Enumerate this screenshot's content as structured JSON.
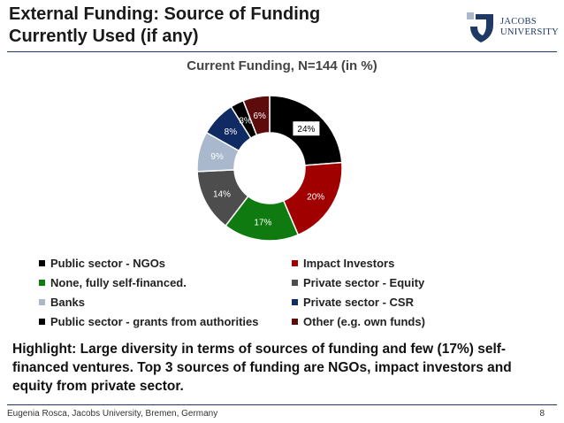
{
  "header": {
    "title": "External Funding: Source of Funding\nCurrently Used (if any)",
    "logo": {
      "line1": "JACOBS",
      "line2": "UNIVERSITY"
    }
  },
  "colors": {
    "navy": "#1f3864",
    "text": "#1a1a1a"
  },
  "chart_data": {
    "type": "pie",
    "style": "donut",
    "title": "Current Funding, N=144 (in %)",
    "categories": [
      "Public sector - NGOs",
      "Impact Investors",
      "None, fully self-financed.",
      "Private sector - Equity",
      "Banks",
      "Private sector - CSR",
      "Public sector - grants from authorities",
      "Other (e.g. own funds)"
    ],
    "values": [
      24,
      20,
      17,
      14,
      9,
      8,
      3,
      6
    ],
    "labels": [
      "24%",
      "20%",
      "17%",
      "14%",
      "9%",
      "8%",
      "3%",
      "6%"
    ],
    "colors": [
      "#000000",
      "#a00000",
      "#0f7a0f",
      "#4d4d4d",
      "#a9b8cd",
      "#102a64",
      "#000000",
      "#5e0b0b"
    ],
    "legend_position": "bottom"
  },
  "highlight": "Highlight: Large diversity in terms of sources of funding and few (17%) self-financed ventures. Top 3 sources of funding are NGOs, impact investors and equity from private sector.",
  "footer": {
    "text": "Eugenia Rosca, Jacobs University, Bremen, Germany",
    "page": "8"
  }
}
